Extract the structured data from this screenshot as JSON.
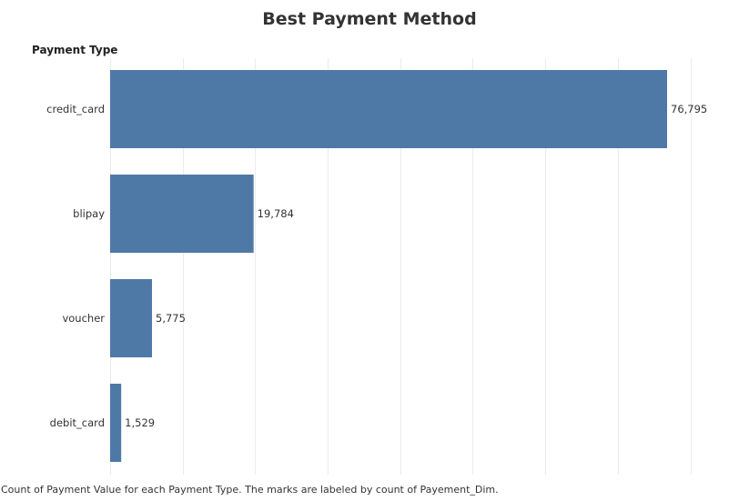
{
  "chart_data": {
    "type": "bar",
    "orientation": "horizontal",
    "title": "Best Payment Method",
    "row_header": "Payment Type",
    "categories": [
      "credit_card",
      "blipay",
      "voucher",
      "debit_card"
    ],
    "values": [
      76795,
      19784,
      5775,
      1529
    ],
    "value_labels": [
      "76,795",
      "19,784",
      "5,775",
      "1,529"
    ],
    "xlim": [
      0,
      86000
    ],
    "grid": true,
    "bar_color": "#4e79a7",
    "caption": "Count of Payment Value for each Payment Type.  The marks are labeled by count of Payement_Dim."
  }
}
